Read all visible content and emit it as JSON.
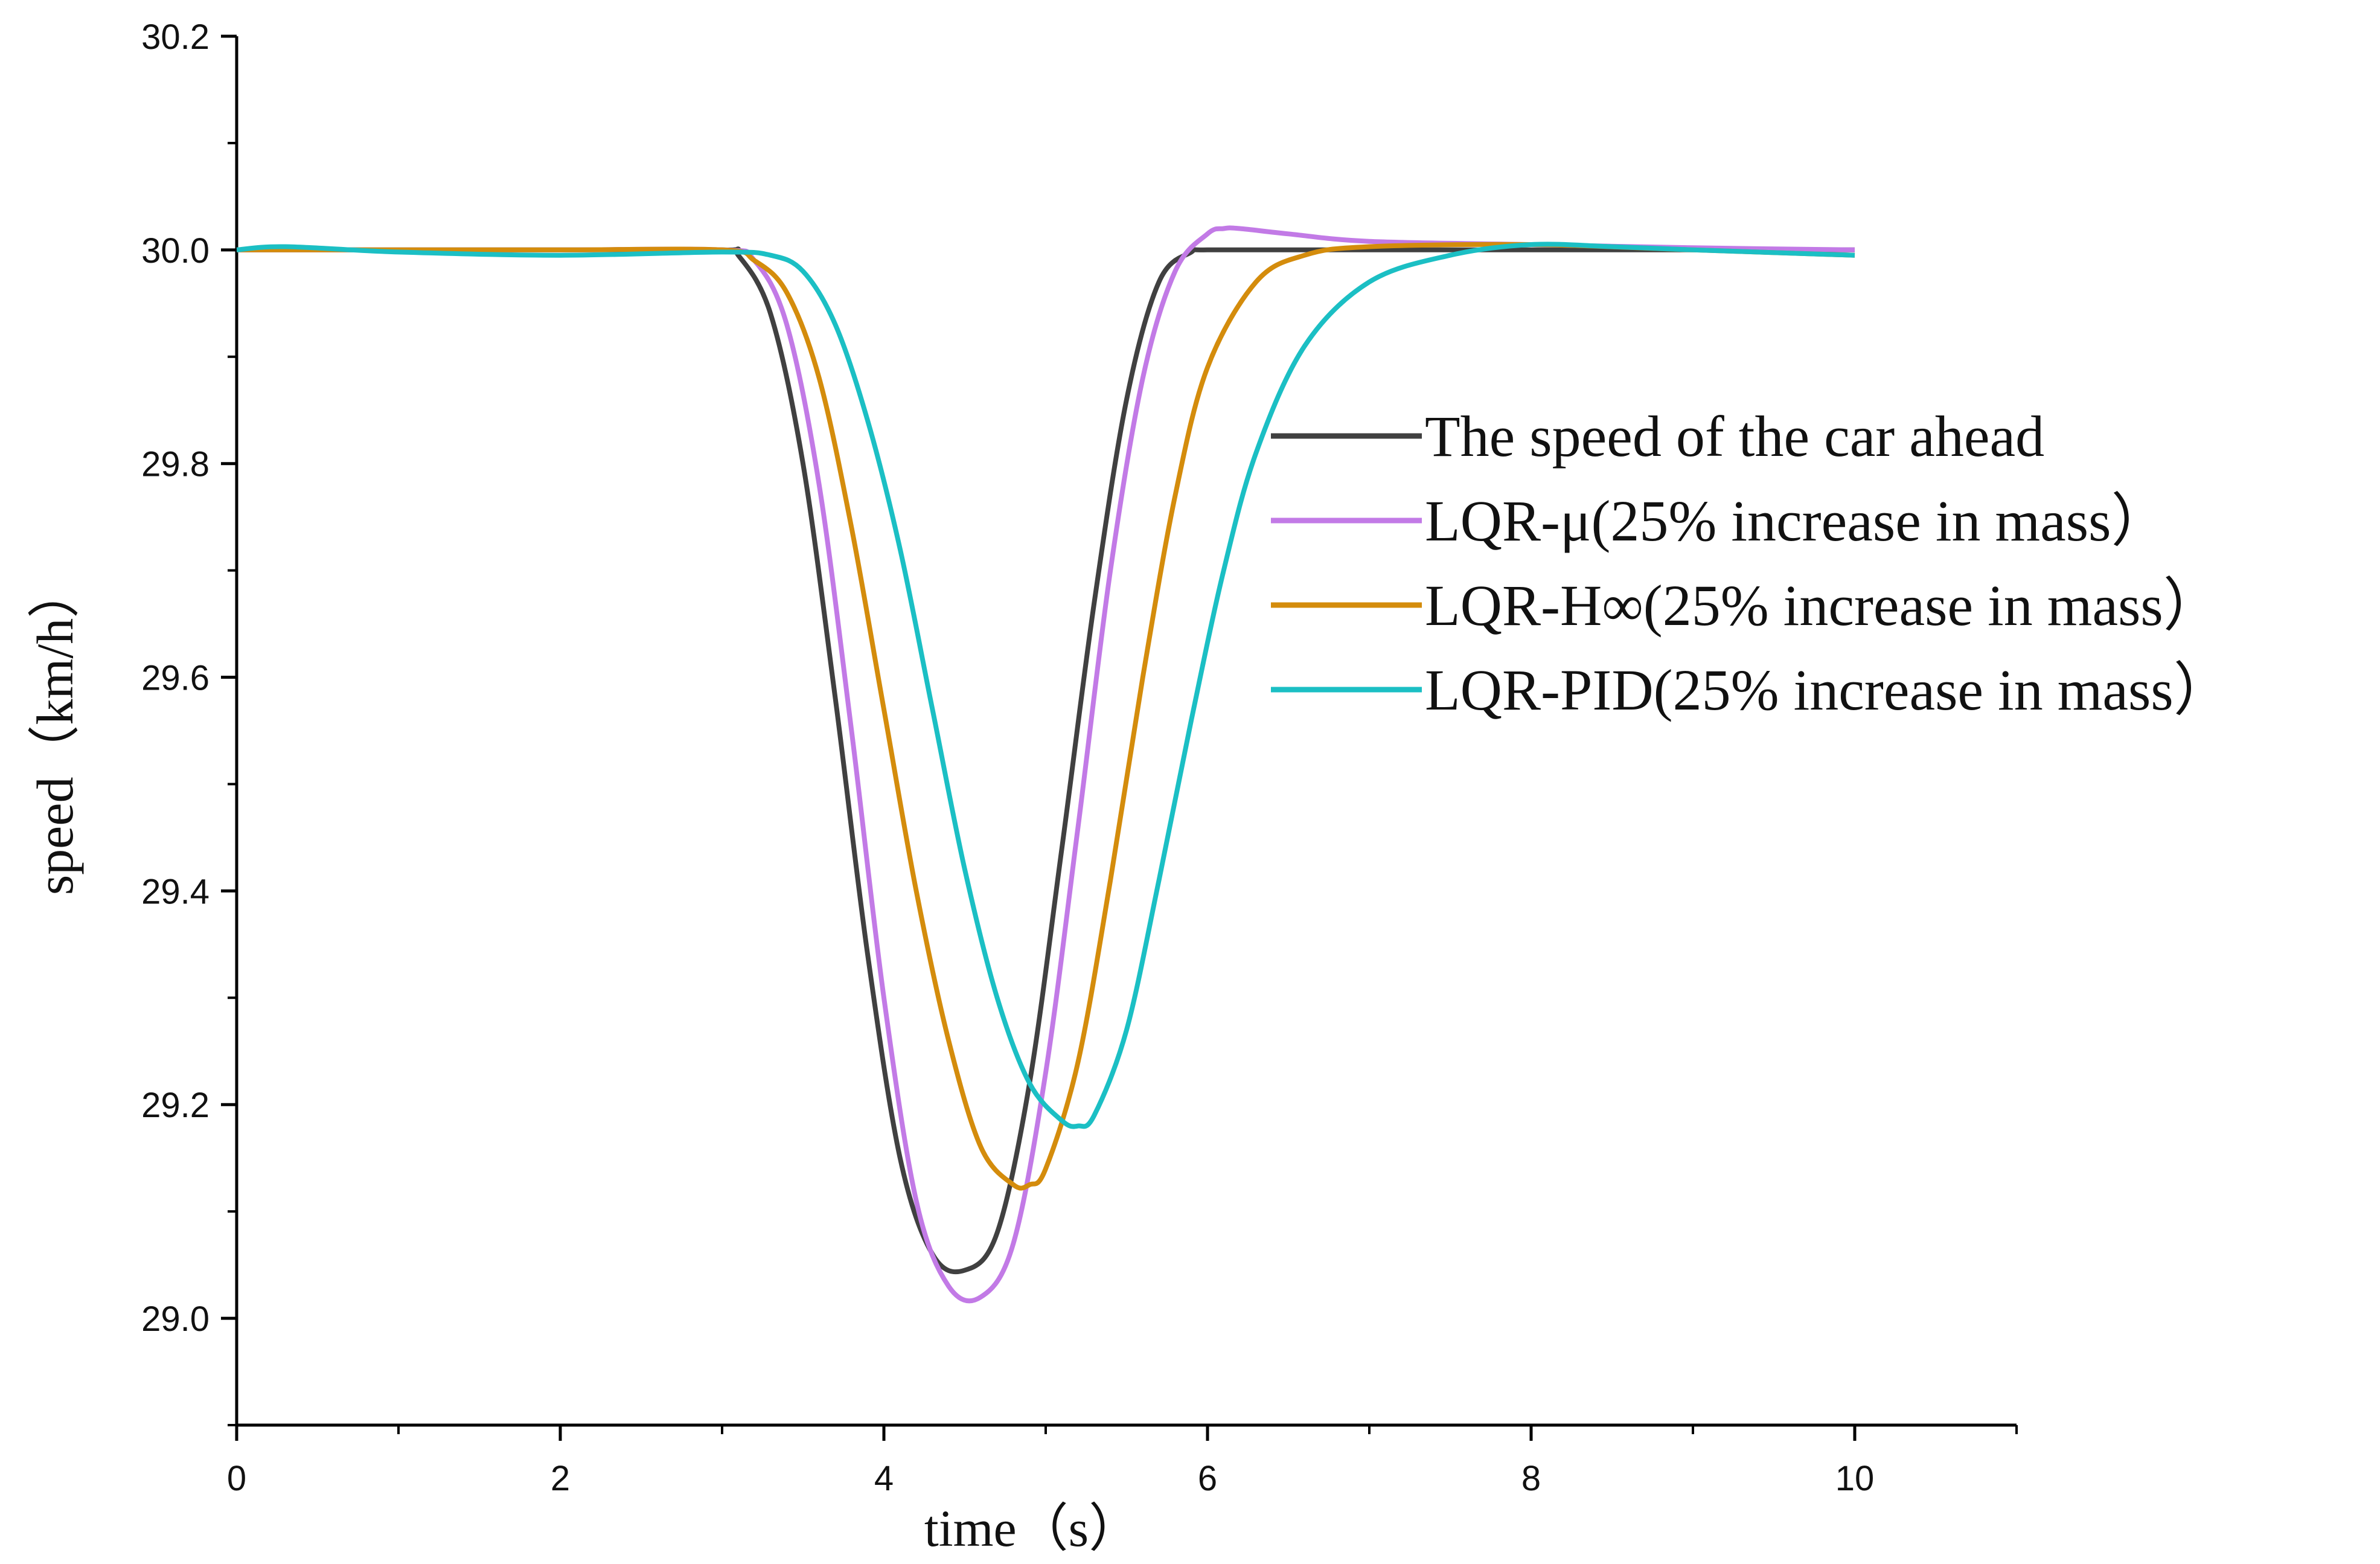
{
  "chart_data": {
    "type": "line",
    "title": "",
    "xlabel": "time（s）",
    "ylabel": "speed（km/h）",
    "xlim": [
      0,
      11
    ],
    "ylim": [
      28.9,
      30.2
    ],
    "x_ticks": [
      "0",
      "2",
      "4",
      "6",
      "8",
      "10"
    ],
    "y_ticks": [
      "29.0",
      "29.2",
      "29.4",
      "29.6",
      "29.8",
      "30.0",
      "30.2"
    ],
    "legend_position": "right",
    "series": [
      {
        "name": "The speed of the car ahead",
        "color": "#404040",
        "x": [
          0,
          1,
          2,
          3,
          3.1,
          3.3,
          3.5,
          3.7,
          3.9,
          4.1,
          4.3,
          4.5,
          4.7,
          4.9,
          5.1,
          5.3,
          5.5,
          5.7,
          5.9,
          6.0,
          7,
          8,
          9,
          10
        ],
        "y": [
          30.0,
          30.0,
          30.0,
          30.0,
          29.995,
          29.94,
          29.8,
          29.58,
          29.34,
          29.15,
          29.06,
          29.045,
          29.08,
          29.22,
          29.44,
          29.67,
          29.86,
          29.97,
          29.998,
          30.0,
          30.0,
          30.0,
          30.0,
          30.0
        ]
      },
      {
        "name": "LQR-μ(25% increase in mass）",
        "color": "#c27ae6",
        "x": [
          0,
          1,
          2,
          3,
          3.2,
          3.4,
          3.6,
          3.8,
          4.0,
          4.2,
          4.4,
          4.6,
          4.8,
          5.0,
          5.2,
          5.4,
          5.6,
          5.8,
          6.0,
          6.1,
          6.2,
          6.5,
          7,
          8,
          9,
          10
        ],
        "y": [
          30.0,
          30.0,
          30.0,
          30.0,
          29.99,
          29.93,
          29.78,
          29.55,
          29.3,
          29.11,
          29.03,
          29.02,
          29.07,
          29.23,
          29.46,
          29.7,
          29.88,
          29.98,
          30.015,
          30.02,
          30.02,
          30.015,
          30.008,
          30.005,
          30.002,
          30.0
        ]
      },
      {
        "name": "LQR-H∞(25% increase in mass）",
        "color": "#d48c0c",
        "x": [
          0,
          1,
          2,
          3,
          3.2,
          3.4,
          3.6,
          3.8,
          4.0,
          4.2,
          4.4,
          4.6,
          4.8,
          4.9,
          5.0,
          5.2,
          5.4,
          5.6,
          5.8,
          6.0,
          6.3,
          6.6,
          7,
          8,
          9,
          10
        ],
        "y": [
          30.0,
          30.0,
          30.0,
          30.0,
          29.99,
          29.96,
          29.88,
          29.74,
          29.57,
          29.4,
          29.26,
          29.16,
          29.125,
          29.125,
          29.14,
          29.24,
          29.41,
          29.6,
          29.77,
          29.89,
          29.97,
          29.995,
          30.003,
          30.005,
          30.0,
          29.995
        ]
      },
      {
        "name": "LQR-PID(25% increase in mass）",
        "color": "#1bbfc4",
        "x": [
          0,
          0.3,
          1,
          2,
          3,
          3.3,
          3.5,
          3.7,
          3.9,
          4.1,
          4.3,
          4.5,
          4.7,
          4.9,
          5.1,
          5.2,
          5.3,
          5.5,
          5.7,
          5.9,
          6.1,
          6.3,
          6.6,
          7,
          7.5,
          8,
          8.5,
          9,
          10
        ],
        "y": [
          30.0,
          30.003,
          29.998,
          29.995,
          29.998,
          29.995,
          29.98,
          29.93,
          29.84,
          29.72,
          29.57,
          29.42,
          29.3,
          29.22,
          29.185,
          29.18,
          29.19,
          29.27,
          29.41,
          29.56,
          29.7,
          29.81,
          29.91,
          29.97,
          29.995,
          30.005,
          30.003,
          30.0,
          29.995
        ]
      }
    ]
  }
}
